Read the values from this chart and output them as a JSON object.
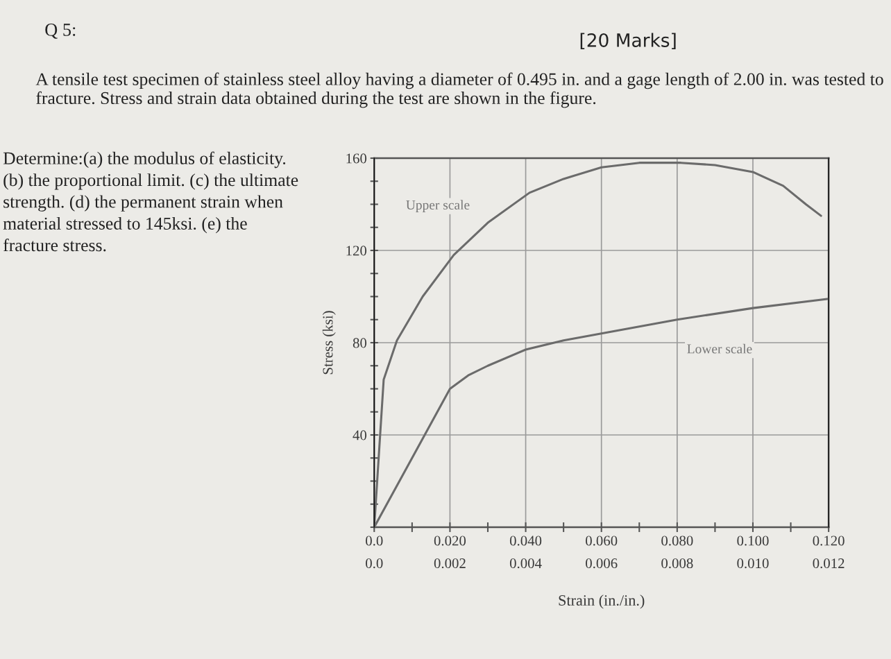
{
  "chart_data": {
    "type": "line",
    "title": "Q 5:",
    "subtitle": "[20 Marks]",
    "annotations": [
      "A tensile test specimen of stainless steel alloy having a diameter of 0.495 in. and a gage length of 2.00 in. was tested to fracture. Stress and strain data obtained during the test are shown in the figure.",
      "Determine:(a) the modulus of elasticity. (b) the proportional limit. (c) the ultimate strength. (d) the permanent strain when material stressed to 145ksi. (e) the fracture stress."
    ],
    "xlabel": "Strain (in./in.)",
    "ylabel": "Stress (ksi)",
    "xlim": [
      0,
      0.12
    ],
    "x2lim": [
      0,
      0.012
    ],
    "ylim": [
      0,
      160
    ],
    "xticks": [
      {
        "value": 0,
        "label": "0.0"
      },
      {
        "value": 0.01,
        "label": null
      },
      {
        "value": 0.02,
        "label": "0.020"
      },
      {
        "value": 0.03,
        "label": null
      },
      {
        "value": 0.04,
        "label": "0.040"
      },
      {
        "value": 0.05,
        "label": null
      },
      {
        "value": 0.06,
        "label": "0.060"
      },
      {
        "value": 0.07,
        "label": null
      },
      {
        "value": 0.08,
        "label": "0.080"
      },
      {
        "value": 0.09,
        "label": null
      },
      {
        "value": 0.1,
        "label": "0.100"
      },
      {
        "value": 0.11,
        "label": null
      },
      {
        "value": 0.12,
        "label": "0.120"
      }
    ],
    "x2ticks": [
      {
        "value": 0,
        "label": "0.0"
      },
      0.002,
      0.004,
      0.006,
      0.008,
      {
        "value": 0.01,
        "label": "0.010"
      },
      0.012
    ],
    "yticks": [
      {
        "value": 0,
        "label": null
      },
      {
        "value": 10,
        "label": null
      },
      {
        "value": 20,
        "label": null
      },
      {
        "value": 30,
        "label": null
      },
      40,
      {
        "value": 50,
        "label": null
      },
      {
        "value": 60,
        "label": null
      },
      {
        "value": 70,
        "label": null
      },
      80,
      {
        "value": 90,
        "label": null
      },
      {
        "value": 100,
        "label": null
      },
      {
        "value": 110,
        "label": null
      },
      120,
      {
        "value": 130,
        "label": null
      },
      {
        "value": 140,
        "label": null
      },
      {
        "value": 150,
        "label": null
      },
      160
    ],
    "grid": true,
    "legend": false,
    "marker": "none",
    "line_style": "solid",
    "series": [
      {
        "name": "Upper scale",
        "color": "#6b6b6b",
        "x": [
          0,
          0.0025,
          0.006,
          0.0128,
          0.021,
          0.03,
          0.041,
          0.05,
          0.06,
          0.07,
          0.081,
          0.09,
          0.1,
          0.108,
          0.114,
          0.118
        ],
        "values": [
          0,
          64,
          81,
          100,
          118,
          132,
          145,
          151,
          156,
          158,
          158,
          157,
          154,
          148,
          140,
          135
        ]
      },
      {
        "name": "Lower scale",
        "color": "#6b6b6b",
        "axis": "x2",
        "x": [
          0,
          0.002,
          0.0025,
          0.003,
          0.004,
          0.005,
          0.006,
          0.008,
          0.01,
          0.012
        ],
        "values": [
          0,
          60,
          66,
          70,
          77,
          81,
          84,
          90,
          95,
          99
        ]
      }
    ]
  }
}
